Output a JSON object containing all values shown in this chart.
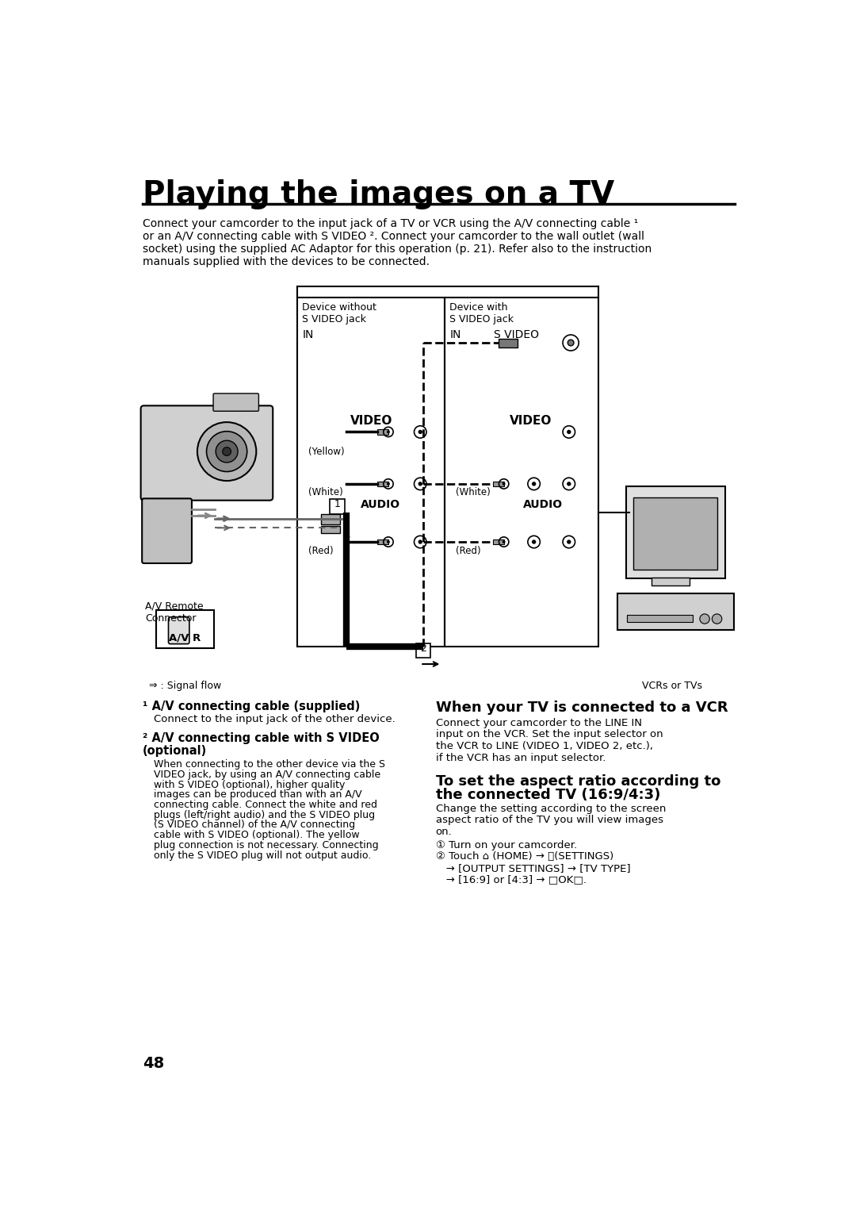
{
  "bg_color": "#ffffff",
  "title": "Playing the images on a TV",
  "title_fontsize": 28,
  "intro_lines": [
    "Connect your camcorder to the input jack of a TV or VCR using the A/V connecting cable ¹",
    "or an A/V connecting cable with S VIDEO ². Connect your camcorder to the wall outlet (wall",
    "socket) using the supplied AC Adaptor for this operation (p. 21). Refer also to the instruction",
    "manuals supplied with the devices to be connected."
  ],
  "section1_heading": "¹ A/V connecting cable (supplied)",
  "section1_body": "Connect to the input jack of the other device.",
  "section2_heading_line1": "² A/V connecting cable with S VIDEO",
  "section2_heading_line2": "   (optional)",
  "section2_body": [
    "When connecting to the other device via the S",
    "VIDEO jack, by using an A/V connecting cable",
    "with S VIDEO (optional), higher quality",
    "images can be produced than with an A/V",
    "connecting cable. Connect the white and red",
    "plugs (left/right audio) and the S VIDEO plug",
    "(S VIDEO channel) of the A/V connecting",
    "cable with S VIDEO (optional). The yellow",
    "plug connection is not necessary. Connecting",
    "only the S VIDEO plug will not output audio."
  ],
  "section3_heading": "When your TV is connected to a VCR",
  "section3_body": [
    "Connect your camcorder to the LINE IN",
    "input on the VCR. Set the input selector on",
    "the VCR to LINE (VIDEO 1, VIDEO 2, etc.),",
    "if the VCR has an input selector."
  ],
  "section4_heading_line1": "To set the aspect ratio according to",
  "section4_heading_line2": "the connected TV (16:9/4:3)",
  "section4_body": [
    "Change the setting according to the screen",
    "aspect ratio of the TV you will view images",
    "on."
  ],
  "section4_step1": "① Turn on your camcorder.",
  "section4_step2": "② Touch ⌂ (HOME) → ⚿(SETTINGS)",
  "section4_step2b": "   → [OUTPUT SETTINGS] → [TV TYPE]",
  "section4_step2c": "   → [16:9] or [4:3] → □OK□.",
  "page_number": "48",
  "lbl_device_without": "Device without\nS VIDEO jack",
  "lbl_device_with": "Device with\nS VIDEO jack",
  "lbl_in": "IN",
  "lbl_s_video": "S VIDEO",
  "lbl_video": "VIDEO",
  "lbl_audio": "AUDIO",
  "lbl_yellow": "(Yellow)",
  "lbl_white": "(White)",
  "lbl_red": "(Red)",
  "lbl_avr": "A/V R",
  "lbl_av_remote": "A/V Remote\nConnector",
  "lbl_signal_flow": "⇒ : Signal flow",
  "lbl_vcrs_or_tvs": "VCRs or TVs"
}
